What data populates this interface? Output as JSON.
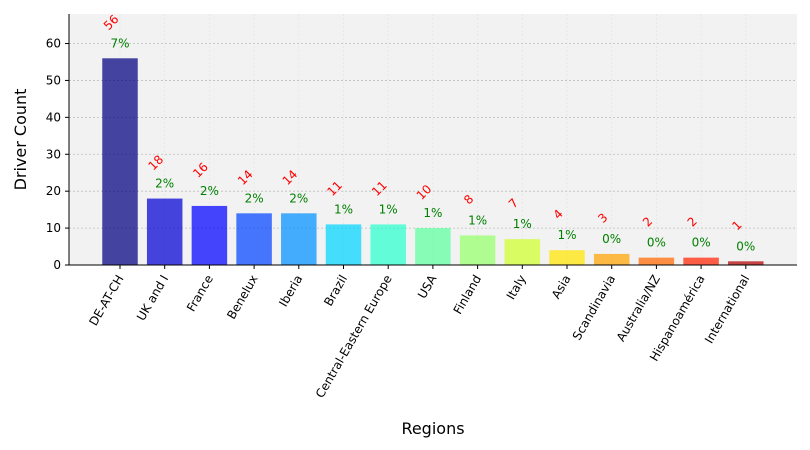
{
  "chart_data": {
    "type": "bar",
    "xlabel": "Regions",
    "ylabel": "Driver Count",
    "ylim": [
      0,
      68
    ],
    "yticks": [
      0,
      10,
      20,
      30,
      40,
      50,
      60
    ],
    "grid": "horizontal dotted",
    "categories": [
      "DE-AT-CH",
      "UK and I",
      "France",
      "Benelux",
      "Iberia",
      "Brazil",
      "Central-Eastern Europe",
      "USA",
      "Finland",
      "Italy",
      "Asia",
      "Scandinavia",
      "Australia/NZ",
      "Hispanoamérica",
      "International"
    ],
    "values": [
      56,
      18,
      16,
      14,
      14,
      11,
      11,
      10,
      8,
      7,
      4,
      3,
      2,
      2,
      1
    ],
    "percent_labels": [
      "7%",
      "2%",
      "2%",
      "2%",
      "2%",
      "1%",
      "1%",
      "1%",
      "1%",
      "1%",
      "1%",
      "0%",
      "0%",
      "0%",
      "0%"
    ],
    "colors": [
      "#00007f",
      "#0000d4",
      "#0000ff",
      "#0044ff",
      "#0090ff",
      "#00d4ff",
      "#29ffce",
      "#5dffa0",
      "#94ff6a",
      "#ceff29",
      "#ffe500",
      "#ffa400",
      "#ff6800",
      "#ff2200",
      "#b20000"
    ],
    "bar_opacity": 0.72,
    "count_label_color": "#ff0000",
    "percent_label_color": "#008000",
    "plot_background": "#f2f2f2"
  }
}
